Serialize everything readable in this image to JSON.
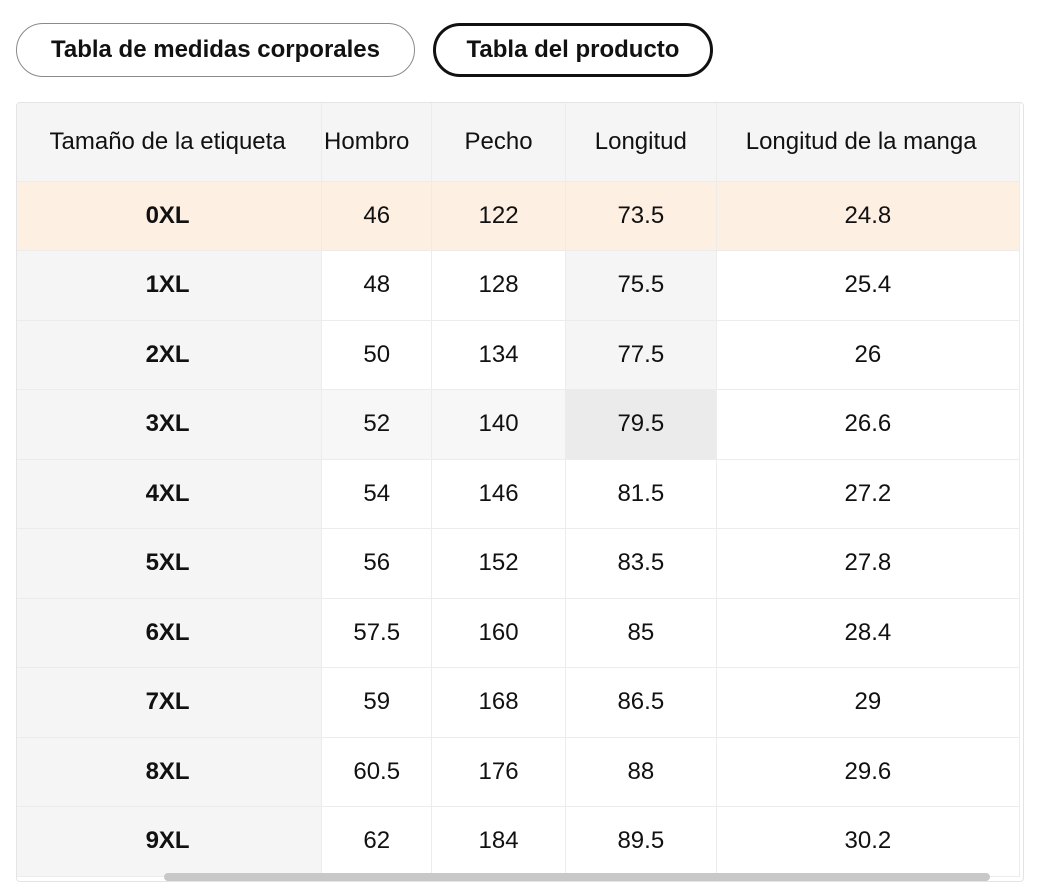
{
  "tabs": [
    {
      "label": "Tabla de medidas corporales",
      "selected": false
    },
    {
      "label": "Tabla del producto",
      "selected": true
    }
  ],
  "table": {
    "headers": [
      "Tamaño de la etiqueta",
      "Hombro",
      "Pecho",
      "Longitud",
      "Longitud de la manga"
    ],
    "rows": [
      [
        "0XL",
        "46",
        "122",
        "73.5",
        "24.8"
      ],
      [
        "1XL",
        "48",
        "128",
        "75.5",
        "25.4"
      ],
      [
        "2XL",
        "50",
        "134",
        "77.5",
        "26"
      ],
      [
        "3XL",
        "52",
        "140",
        "79.5",
        "26.6"
      ],
      [
        "4XL",
        "54",
        "146",
        "81.5",
        "27.2"
      ],
      [
        "5XL",
        "56",
        "152",
        "83.5",
        "27.8"
      ],
      [
        "6XL",
        "57.5",
        "160",
        "85",
        "28.4"
      ],
      [
        "7XL",
        "59",
        "168",
        "86.5",
        "29"
      ],
      [
        "8XL",
        "60.5",
        "176",
        "88",
        "29.6"
      ],
      [
        "9XL",
        "62",
        "184",
        "89.5",
        "30.2"
      ]
    ],
    "highlighted_row": 0
  },
  "colors": {
    "highlight_row": "#fdf0e2",
    "header_bg": "#f5f5f5",
    "selected_tab_border": "#111111"
  }
}
